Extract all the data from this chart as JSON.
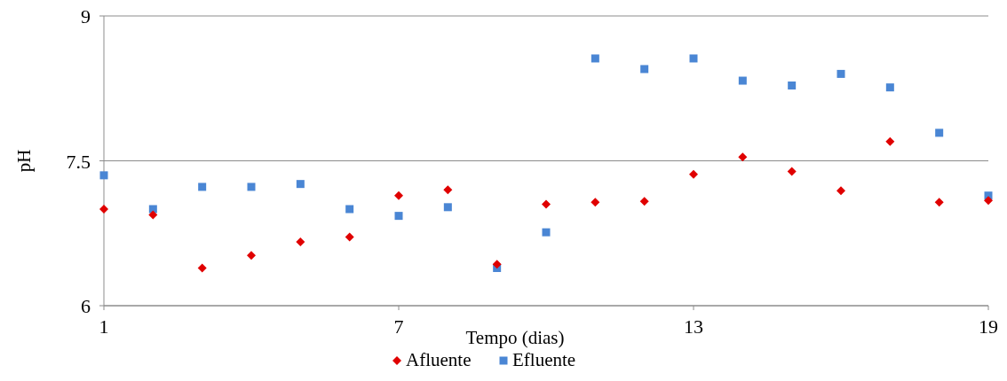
{
  "chart_data": {
    "type": "scatter",
    "xlabel": "Tempo (dias)",
    "ylabel": "pH",
    "x": [
      1,
      2,
      3,
      4,
      5,
      6,
      7,
      8,
      9,
      10,
      11,
      12,
      13,
      14,
      15,
      16,
      17,
      18,
      19
    ],
    "xlim": [
      1,
      19
    ],
    "xticks": [
      1,
      7,
      13,
      19
    ],
    "ylim": [
      6,
      9
    ],
    "yticks": [
      6,
      7.5,
      9
    ],
    "grid": "y",
    "legend": "bottom",
    "series": [
      {
        "name": "Afluente",
        "color": "#e00000",
        "marker": "diamond",
        "values": [
          7.0,
          6.94,
          6.39,
          6.52,
          6.66,
          6.71,
          7.14,
          7.2,
          6.43,
          7.05,
          7.07,
          7.08,
          7.36,
          7.54,
          7.39,
          7.19,
          7.7,
          7.07,
          7.09
        ]
      },
      {
        "name": "Efluente",
        "color": "#4a86d4",
        "marker": "square",
        "values": [
          7.35,
          7.0,
          7.23,
          7.23,
          7.26,
          7.0,
          6.93,
          7.02,
          6.39,
          6.76,
          8.56,
          8.45,
          8.56,
          8.33,
          8.28,
          8.4,
          8.26,
          7.79,
          7.14
        ]
      }
    ]
  }
}
